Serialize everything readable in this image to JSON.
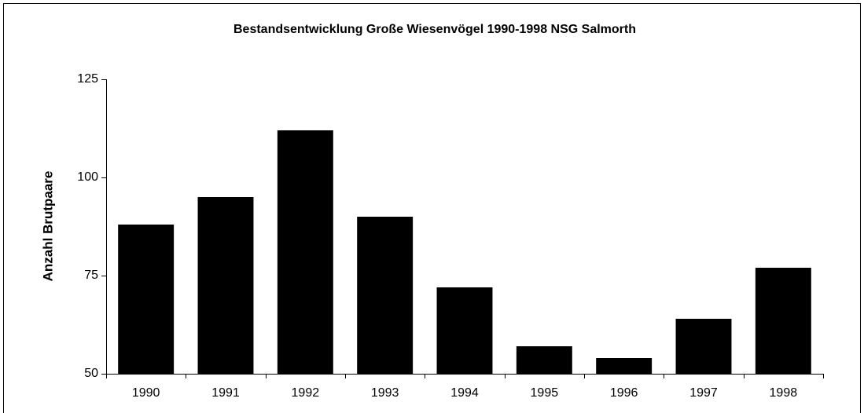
{
  "chart_data": {
    "type": "bar",
    "title": "Bestandsentwicklung Große Wiesenvögel 1990-1998 NSG Salmorth",
    "ylabel": "Anzahl Brutpaare",
    "categories": [
      "1990",
      "1991",
      "1992",
      "1993",
      "1994",
      "1995",
      "1996",
      "1997",
      "1998"
    ],
    "values": [
      88,
      95,
      112,
      90,
      72,
      57,
      54,
      64,
      77
    ],
    "color": "#000000",
    "ylim": [
      50,
      125
    ],
    "yticks": [
      50,
      75,
      100,
      125
    ],
    "grid": false
  }
}
